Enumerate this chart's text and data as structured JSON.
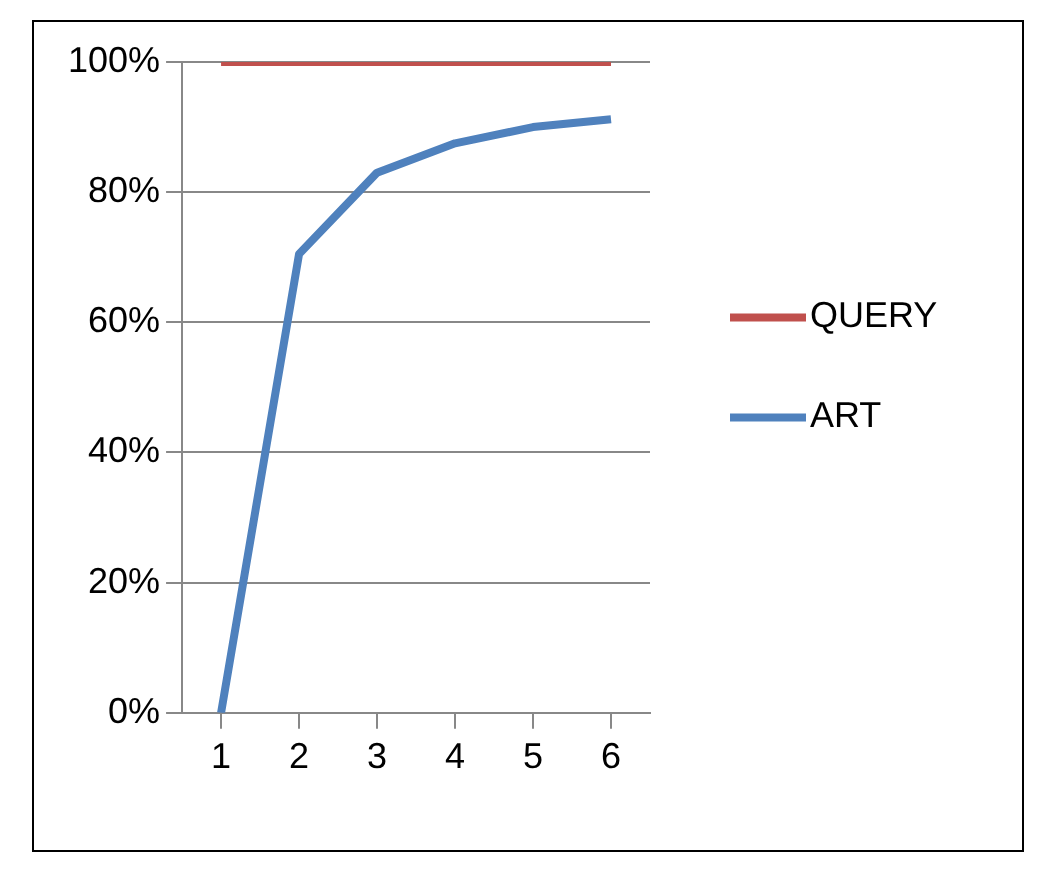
{
  "chart_data": {
    "type": "line",
    "categories": [
      "1",
      "2",
      "3",
      "4",
      "5",
      "6"
    ],
    "series": [
      {
        "name": "QUERY",
        "color": "#c0504d",
        "values": [
          100,
          100,
          100,
          100,
          100,
          100
        ]
      },
      {
        "name": "ART",
        "color": "#4f81bd",
        "values": [
          0,
          70.5,
          83,
          87.5,
          90,
          91.2
        ]
      }
    ],
    "ylim": [
      0,
      100
    ],
    "yticks": [
      {
        "value": 0,
        "label": "0%"
      },
      {
        "value": 20,
        "label": "20%"
      },
      {
        "value": 40,
        "label": "40%"
      },
      {
        "value": 60,
        "label": "60%"
      },
      {
        "value": 80,
        "label": "80%"
      },
      {
        "value": 100,
        "label": "100%"
      }
    ],
    "grid": "y",
    "legend": "right",
    "marker": "none",
    "line_style": "solid"
  }
}
